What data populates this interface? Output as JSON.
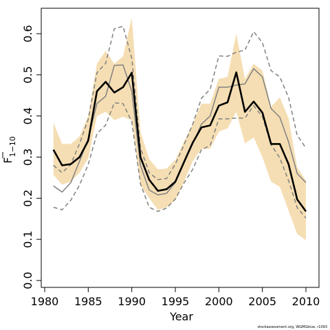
{
  "chart_data": {
    "type": "line",
    "xlabel": "Year",
    "ylabel_main": "F",
    "ylabel_sub": "1−10",
    "xlim": [
      1980,
      2012
    ],
    "ylim": [
      0,
      0.65
    ],
    "xticks": [
      1980,
      1985,
      1990,
      1995,
      2000,
      2005,
      2010
    ],
    "yticks": [
      0.0,
      0.1,
      0.2,
      0.3,
      0.4,
      0.5,
      0.6
    ],
    "ytick_labels": [
      "0.0",
      "0.1",
      "0.2",
      "0.3",
      "0.4",
      "0.5",
      "0.6"
    ],
    "grid": false,
    "x": [
      1981,
      1982,
      1983,
      1984,
      1985,
      1986,
      1987,
      1988,
      1989,
      1990,
      1991,
      1992,
      1993,
      1994,
      1995,
      1996,
      1997,
      1998,
      1999,
      2000,
      2001,
      2002,
      2003,
      2004,
      2005,
      2006,
      2007,
      2008,
      2009,
      2010
    ],
    "series": [
      {
        "role": "estimate",
        "color": "#000000",
        "values": [
          0.318,
          0.28,
          0.283,
          0.3,
          0.34,
          0.46,
          0.483,
          0.457,
          0.47,
          0.505,
          0.3,
          0.245,
          0.218,
          0.222,
          0.24,
          0.288,
          0.335,
          0.372,
          0.377,
          0.425,
          0.433,
          0.506,
          0.41,
          0.435,
          0.408,
          0.332,
          0.332,
          0.283,
          0.197,
          0.168
        ]
      },
      {
        "role": "median",
        "color": "#808080",
        "values": [
          0.23,
          0.215,
          0.238,
          0.29,
          0.345,
          0.43,
          0.448,
          0.523,
          0.524,
          0.46,
          0.28,
          0.22,
          0.208,
          0.212,
          0.238,
          0.29,
          0.332,
          0.38,
          0.4,
          0.47,
          0.47,
          0.475,
          0.478,
          0.515,
          0.495,
          0.418,
          0.397,
          0.337,
          0.26,
          0.238
        ]
      },
      {
        "role": "upper-dashed",
        "color": "#808080",
        "values": [
          0.28,
          0.262,
          0.282,
          0.333,
          0.392,
          0.505,
          0.528,
          0.612,
          0.618,
          0.54,
          0.322,
          0.262,
          0.245,
          0.248,
          0.283,
          0.33,
          0.38,
          0.443,
          0.465,
          0.546,
          0.545,
          0.555,
          0.56,
          0.605,
          0.578,
          0.51,
          0.495,
          0.445,
          0.353,
          0.322
        ]
      },
      {
        "role": "lower-dashed",
        "color": "#808080",
        "values": [
          0.178,
          0.172,
          0.195,
          0.232,
          0.282,
          0.357,
          0.378,
          0.432,
          0.43,
          0.386,
          0.235,
          0.178,
          0.168,
          0.176,
          0.198,
          0.237,
          0.27,
          0.318,
          0.328,
          0.393,
          0.393,
          0.395,
          0.395,
          0.425,
          0.398,
          0.33,
          0.298,
          0.243,
          0.177,
          0.152
        ]
      }
    ],
    "band": {
      "color": "#F5DEB3",
      "upper": [
        0.383,
        0.332,
        0.332,
        0.35,
        0.4,
        0.527,
        0.558,
        0.527,
        0.545,
        0.64,
        0.362,
        0.295,
        0.27,
        0.272,
        0.293,
        0.338,
        0.38,
        0.43,
        0.43,
        0.49,
        0.495,
        0.6,
        0.49,
        0.527,
        0.51,
        0.422,
        0.445,
        0.395,
        0.275,
        0.243
      ],
      "lower": [
        0.257,
        0.233,
        0.24,
        0.262,
        0.297,
        0.4,
        0.41,
        0.39,
        0.398,
        0.39,
        0.232,
        0.2,
        0.172,
        0.178,
        0.195,
        0.24,
        0.29,
        0.32,
        0.32,
        0.362,
        0.37,
        0.41,
        0.333,
        0.348,
        0.3,
        0.24,
        0.228,
        0.17,
        0.113,
        0.098
      ]
    },
    "credit": "stockassessment.org, WGMGblue, r1093"
  }
}
